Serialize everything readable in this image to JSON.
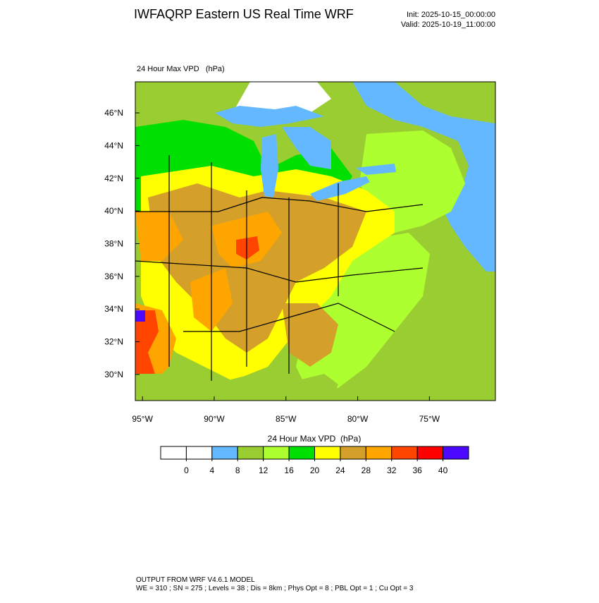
{
  "header": {
    "title": "IWFAQRP Eastern US Real Time WRF",
    "init": "Init: 2025-10-15_00:00:00",
    "valid": "Valid: 2025-10-19_11:00:00"
  },
  "map": {
    "field_label": "24 Hour Max VPD   (hPa)",
    "xlim": [
      -95.5,
      -70.4
    ],
    "ylim": [
      28.4,
      47.9
    ],
    "lon_ticks": [
      {
        "value": -95,
        "label": "95°W"
      },
      {
        "value": -90,
        "label": "90°W"
      },
      {
        "value": -85,
        "label": "85°W"
      },
      {
        "value": -80,
        "label": "80°W"
      },
      {
        "value": -75,
        "label": "75°W"
      }
    ],
    "lat_ticks": [
      {
        "value": 30,
        "label": "30°N"
      },
      {
        "value": 32,
        "label": "32°N"
      },
      {
        "value": 34,
        "label": "34°N"
      },
      {
        "value": 36,
        "label": "36°N"
      },
      {
        "value": 38,
        "label": "38°N"
      },
      {
        "value": 40,
        "label": "40°N"
      },
      {
        "value": 42,
        "label": "42°N"
      },
      {
        "value": 44,
        "label": "44°N"
      },
      {
        "value": 46,
        "label": "46°N"
      }
    ]
  },
  "colorbar": {
    "title": "24 Hour Max VPD  (hPa)",
    "levels": [
      0,
      4,
      8,
      12,
      16,
      20,
      24,
      28,
      32,
      36,
      40
    ],
    "colors": [
      "#ffffff",
      "#ffffff",
      "#63b8ff",
      "#9acd32",
      "#adff2f",
      "#00e000",
      "#ffff00",
      "#d4a02a",
      "#ffa500",
      "#ff4500",
      "#ff0000",
      "#4b0aff"
    ]
  },
  "footer": {
    "line1": "OUTPUT FROM WRF V4.6.1 MODEL",
    "line2": "WE = 310 ; SN = 275 ; Levels = 38 ; Dis = 8km ; Phys Opt = 8 ; PBL Opt = 1 ; Cu Opt = 3"
  }
}
